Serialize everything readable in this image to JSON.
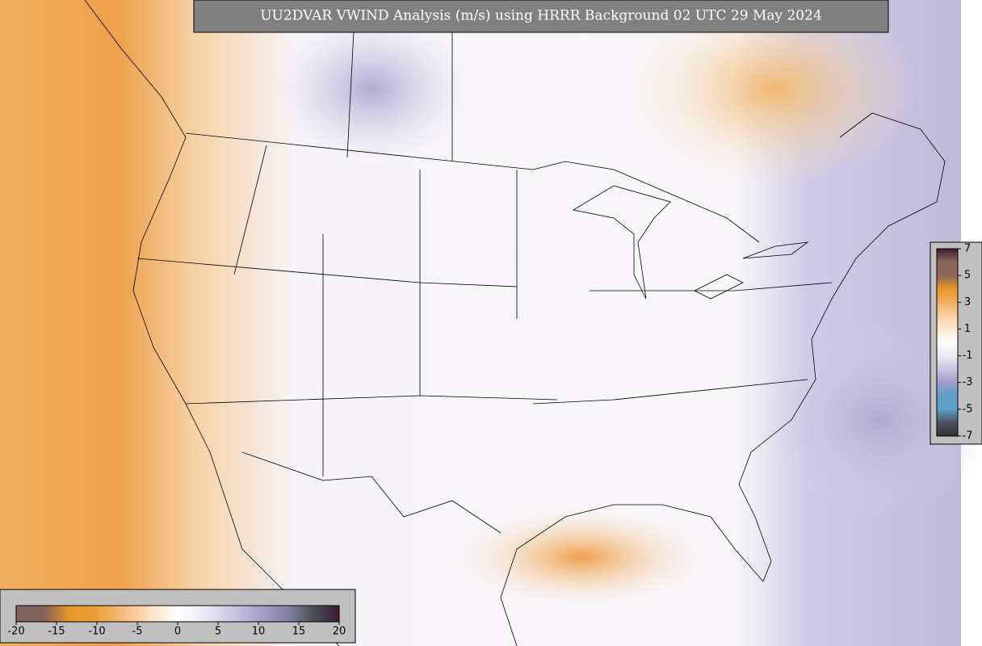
{
  "title": "UU2DVAR VWIND Analysis (m/s) using HRRR Background 02 UTC 29 May 2024",
  "colorbar_bottom": {
    "ticks": [
      -20,
      -15,
      -10,
      -5,
      0,
      5,
      10,
      15,
      20
    ],
    "colors": [
      "#80605a",
      "#80605a",
      "#e8962a",
      "#ee9f3a",
      "#f4bd7c",
      "#fbe2c4",
      "#ffffff",
      "#ebe9f4",
      "#cdc8e3",
      "#a9a2cf",
      "#8a86a8",
      "#4a5258",
      "#3d1a3a"
    ]
  },
  "colorbar_right": {
    "ticks": [
      7,
      5,
      3,
      1,
      -1,
      -3,
      -5,
      -7
    ],
    "colors": [
      "#3d1a3a",
      "#8c6759",
      "#8c6759",
      "#e8962a",
      "#f0b060",
      "#f8d0a0",
      "#fde8d0",
      "#ffffff",
      "#eceaf4",
      "#c8c4e0",
      "#a09acc",
      "#5aa0c8",
      "#5aa0c8",
      "#4a5258",
      "#303038"
    ]
  }
}
